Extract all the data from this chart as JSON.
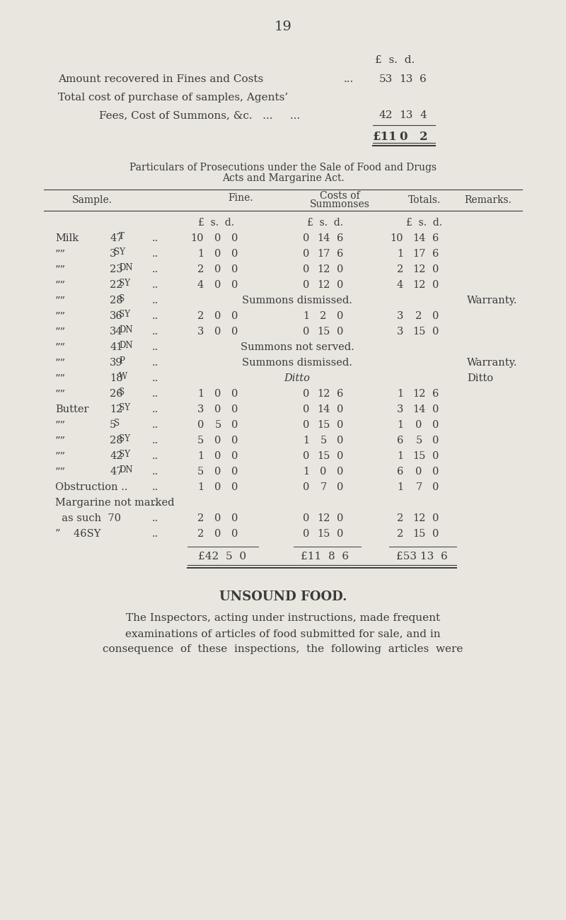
{
  "bg_color": "#e8e6df",
  "text_color": "#3a3a3a",
  "page_number": "19",
  "summary_lines": [
    {
      "label": "Amount recovered in Fines and Costs",
      "dots": "...",
      "pounds": "53",
      "shillings": "13",
      "pence": "6"
    },
    {
      "label": "Total cost of purchase of samples, Agents’",
      "dots": "",
      "pounds": "",
      "shillings": "",
      "pence": ""
    },
    {
      "label": "    Fees, Cost of Summons, &c.  ...   ...",
      "dots": "",
      "pounds": "42",
      "shillings": "13",
      "pence": "4"
    }
  ],
  "total_line": {
    "£11": "0",
    "d": "2"
  },
  "section_title": "Particulars of Prosecutions under the Sale of Food and Drugs\nActs and Margarine Act.",
  "col_headers": [
    "Sample.",
    "Fine.",
    "Costs of\nSummonses",
    "Totals.",
    "Remarks."
  ],
  "sub_headers": [
    "£  s.  d.",
    "£  s.  d.",
    "£  s.  d."
  ],
  "rows": [
    {
      "cat": "Milk",
      "sample": "47T",
      "fine": "10  0  0",
      "costs": "0 14  6",
      "totals": "10 14  6",
      "remarks": ""
    },
    {
      "cat": "”",
      "sample": "3SY",
      "fine": "1  0  0",
      "costs": "0 17  6",
      "totals": "1 17  6",
      "remarks": ""
    },
    {
      "cat": "”",
      "sample": "23DN",
      "fine": "2  0  0",
      "costs": "0 12  0",
      "totals": "2 12  0",
      "remarks": ""
    },
    {
      "cat": "”",
      "sample": "22SY",
      "fine": "4  0  0",
      "costs": "0 12  0",
      "totals": "4 12  0",
      "remarks": ""
    },
    {
      "cat": "”",
      "sample": "28S",
      "fine": "",
      "costs": "Summons dismissed.",
      "totals": "",
      "remarks": "Warranty."
    },
    {
      "cat": "”",
      "sample": "36SY",
      "fine": "2  0  0",
      "costs": "1  2  0",
      "totals": "3  2  0",
      "remarks": ""
    },
    {
      "cat": "”",
      "sample": "34DN",
      "fine": "3  0  0",
      "costs": "0 15  0",
      "totals": "3 15  0",
      "remarks": ""
    },
    {
      "cat": "”",
      "sample": "41DN",
      "fine": "",
      "costs": "Summons not served.",
      "totals": "",
      "remarks": ""
    },
    {
      "cat": "”",
      "sample": "39P",
      "fine": "",
      "costs": "Summons dismissed.",
      "totals": "",
      "remarks": "Warranty."
    },
    {
      "cat": "”",
      "sample": "18W",
      "fine": "",
      "costs": "Ditto",
      "totals": "",
      "remarks": "Ditto"
    },
    {
      "cat": "”",
      "sample": "26S",
      "fine": "1  0  0",
      "costs": "0 12  6",
      "totals": "1 12  6",
      "remarks": ""
    },
    {
      "cat": "Butter",
      "sample": "12SY",
      "fine": "3  0  0",
      "costs": "0 14  0",
      "totals": "3 14  0",
      "remarks": ""
    },
    {
      "cat": "”",
      "sample": "5S",
      "fine": "0  5  0",
      "costs": "0 15  0",
      "totals": "1  0  0",
      "remarks": ""
    },
    {
      "cat": "”",
      "sample": "28SY",
      "fine": "5  0  0",
      "costs": "1  5  0",
      "totals": "6  5  0",
      "remarks": ""
    },
    {
      "cat": "”",
      "sample": "42SY",
      "fine": "1  0  0",
      "costs": "0 15  0",
      "totals": "1 15  0",
      "remarks": ""
    },
    {
      "cat": "”",
      "sample": "47DN",
      "fine": "5  0  0",
      "costs": "1  0  0",
      "totals": "6  0  0",
      "remarks": ""
    },
    {
      "cat": "Obstruction ..",
      "sample": "",
      "fine": "1  0  0",
      "costs": "0  7  0",
      "totals": "1  7  0",
      "remarks": ""
    },
    {
      "cat": "Margarine not marked",
      "sample": "",
      "fine": "",
      "costs": "",
      "totals": "",
      "remarks": ""
    },
    {
      "cat": "  as such  70",
      "sample": "",
      "fine": "2  0  0",
      "costs": "0 12  0",
      "totals": "2 12  0",
      "remarks": ""
    },
    {
      "cat": "”    46SY",
      "sample": "",
      "fine": "2  0  0",
      "costs": "0 15  0",
      "totals": "2 15  0",
      "remarks": ""
    }
  ],
  "totals_row": {
    "fine": "£42  5  0",
    "costs": "£11  8  6",
    "totals": "£53 13  6"
  },
  "unsound_title": "UNSOUND FOOD.",
  "unsound_text": "The Inspectors, acting under instructions, made frequent\nexaminations of articles of food submitted for sale, and in\nconsequence  of  these  inspections,  the  following  articles  were"
}
